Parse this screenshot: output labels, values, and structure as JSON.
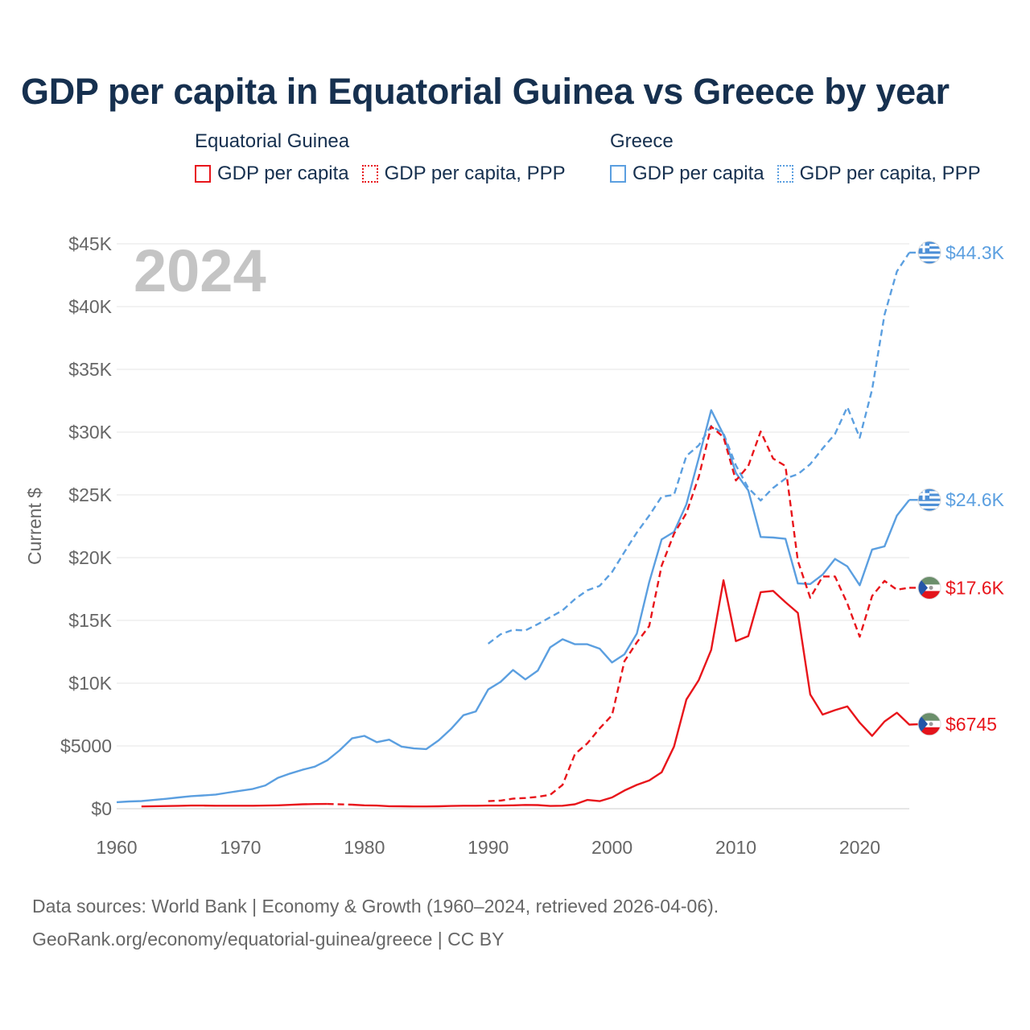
{
  "title": "GDP per capita in Equatorial Guinea vs Greece by year",
  "year_label": "2024",
  "legend": {
    "equatorial_guinea": {
      "title": "Equatorial Guinea",
      "items": [
        {
          "label": "GDP per capita",
          "style": "solid",
          "color": "#e8151b"
        },
        {
          "label": "GDP per capita, PPP",
          "style": "dotted",
          "color": "#e8151b"
        }
      ]
    },
    "greece": {
      "title": "Greece",
      "items": [
        {
          "label": "GDP per capita",
          "style": "solid",
          "color": "#5b9fe0"
        },
        {
          "label": "GDP per capita, PPP",
          "style": "dotted",
          "color": "#5b9fe0"
        }
      ]
    }
  },
  "footer": {
    "line1": "Data sources: World Bank | Economy & Growth (1960–2024, retrieved 2026-04-06).",
    "line2": "GeoRank.org/economy/equatorial-guinea/greece | CC BY"
  },
  "chart_data": {
    "type": "line",
    "ylabel": "Current $",
    "xlim": [
      1960,
      2024
    ],
    "ylim": [
      0,
      45000
    ],
    "x_ticks": [
      1960,
      1970,
      1980,
      1990,
      2000,
      2010,
      2020
    ],
    "y_ticks": [
      {
        "value": 0,
        "label": "$0"
      },
      {
        "value": 5000,
        "label": "$5000"
      },
      {
        "value": 10000,
        "label": "$10K"
      },
      {
        "value": 15000,
        "label": "$15K"
      },
      {
        "value": 20000,
        "label": "$20K"
      },
      {
        "value": 25000,
        "label": "$25K"
      },
      {
        "value": 30000,
        "label": "$30K"
      },
      {
        "value": 35000,
        "label": "$35K"
      },
      {
        "value": 40000,
        "label": "$40K"
      },
      {
        "value": 45000,
        "label": "$45K"
      }
    ],
    "grid": true,
    "series": [
      {
        "name": "Greece GDP per capita",
        "country": "Greece",
        "color": "#5b9fe0",
        "dashed": false,
        "end_label": "$24.6K",
        "x_start": 1960,
        "values": [
          520,
          580,
          610,
          700,
          790,
          900,
          1000,
          1060,
          1130,
          1280,
          1430,
          1580,
          1850,
          2450,
          2800,
          3100,
          3350,
          3850,
          4650,
          5600,
          5800,
          5300,
          5500,
          4950,
          4800,
          4750,
          5450,
          6350,
          7450,
          7750,
          9500,
          10100,
          11050,
          10300,
          11000,
          12850,
          13500,
          13100,
          13100,
          12750,
          11650,
          12300,
          13950,
          18050,
          21450,
          22050,
          24250,
          27950,
          31750,
          29800,
          26750,
          25350,
          21650,
          21600,
          21500,
          17950,
          17900,
          18650,
          19900,
          19300,
          17800,
          20650,
          20900,
          23350,
          24600
        ]
      },
      {
        "name": "Greece GDP per capita, PPP",
        "country": "Greece",
        "color": "#5b9fe0",
        "dashed": true,
        "end_label": "$44.3K",
        "x_start": 1990,
        "values": [
          13150,
          13900,
          14250,
          14200,
          14700,
          15250,
          15800,
          16700,
          17400,
          17750,
          18850,
          20450,
          22000,
          23350,
          24850,
          25000,
          28100,
          28950,
          30500,
          29900,
          27350,
          25550,
          24550,
          25550,
          26300,
          26650,
          27450,
          28700,
          29850,
          32000,
          29550,
          33400,
          39350,
          42800,
          44300
        ]
      },
      {
        "name": "Equatorial Guinea GDP per capita",
        "country": "Equatorial Guinea",
        "color": "#e8151b",
        "dashed": false,
        "end_label": "$6745",
        "x_start": 1962,
        "values": [
          180,
          200,
          210,
          230,
          250,
          250,
          240,
          240,
          240,
          240,
          250,
          270,
          310,
          350,
          370,
          380,
          360,
          320,
          270,
          250,
          200,
          190,
          180,
          180,
          190,
          220,
          240,
          240,
          250,
          250,
          270,
          300,
          290,
          220,
          240,
          350,
          700,
          600,
          900,
          1450,
          1900,
          2250,
          2900,
          4950,
          8700,
          10250,
          12650,
          18200,
          13350,
          13750,
          17250,
          17350,
          16450,
          15600,
          9100,
          7500,
          7850,
          8150,
          6850,
          5800,
          6950,
          7650,
          6700,
          6745
        ],
        "gap_years": [
          1978
        ]
      },
      {
        "name": "Equatorial Guinea GDP per capita, PPP",
        "country": "Equatorial Guinea",
        "color": "#e8151b",
        "dashed": true,
        "end_label": "$17.6K",
        "x_start": 1990,
        "values": [
          600,
          650,
          800,
          850,
          950,
          1100,
          1900,
          4350,
          5200,
          6400,
          7450,
          11750,
          13250,
          14550,
          19350,
          21900,
          23550,
          26450,
          30450,
          29600,
          26150,
          27300,
          30050,
          27900,
          27300,
          19750,
          16800,
          18500,
          18500,
          16350,
          13700,
          16950,
          18150,
          17450,
          17600
        ]
      }
    ]
  }
}
